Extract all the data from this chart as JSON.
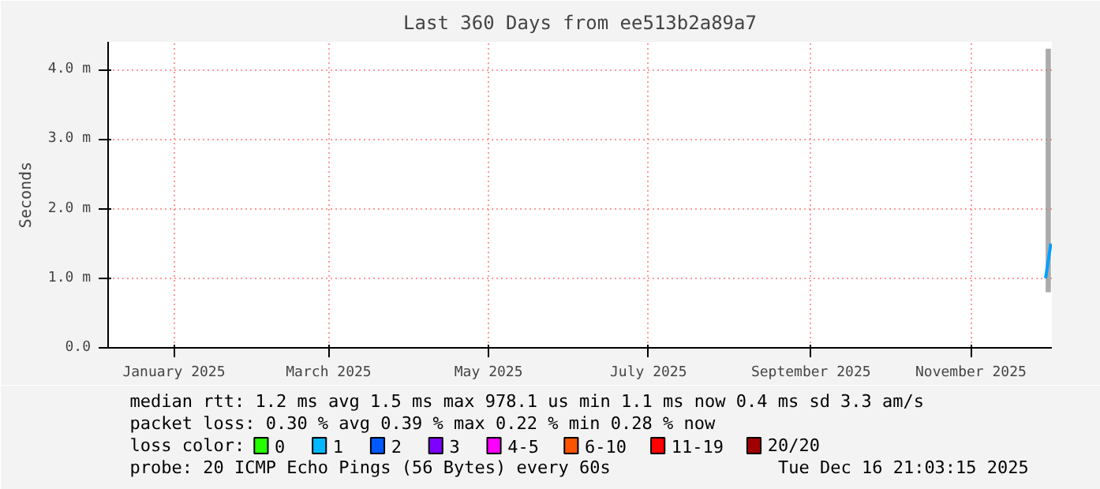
{
  "chart_data": {
    "type": "line",
    "title": "Last 360 Days from ee513b2a89a7",
    "ylabel": "Seconds",
    "xlim": [
      "2024-12-21T21:03",
      "2025-12-16T21:03"
    ],
    "xticks": [
      {
        "value": "2025-01-16",
        "label": "January 2025"
      },
      {
        "value": "2025-03-16",
        "label": "March 2025"
      },
      {
        "value": "2025-05-16",
        "label": "May 2025"
      },
      {
        "value": "2025-07-16",
        "label": "July 2025"
      },
      {
        "value": "2025-09-16",
        "label": "September 2025"
      },
      {
        "value": "2025-11-16",
        "label": "November 2025"
      }
    ],
    "ylim": [
      0,
      4.4
    ],
    "yticks": [
      {
        "value": 0,
        "label": "0.0"
      },
      {
        "value": 1,
        "label": "1.0 m"
      },
      {
        "value": 2,
        "label": "2.0 m"
      },
      {
        "value": 3,
        "label": "3.0 m"
      },
      {
        "value": 4,
        "label": "4.0 m"
      }
    ],
    "grid": true,
    "legend": "bottom",
    "legend_title": "loss color:",
    "series": [
      {
        "color": "#00a0ff",
        "x": [
          "2025-12-14T12:00",
          "2025-12-16T12:00"
        ],
        "values": [
          1.0,
          1.5
        ],
        "lower": [
          0.8,
          0.8
        ],
        "upper": [
          4.3,
          4.3
        ]
      },
      {
        "name": "0",
        "color": "#26ff00"
      },
      {
        "name": "1",
        "color": "#00b8ff"
      },
      {
        "name": "2",
        "color": "#0059ff"
      },
      {
        "name": "3",
        "color": "#7e00ff"
      },
      {
        "name": "4-5",
        "color": "#ff00ff"
      },
      {
        "name": "6-10",
        "color": "#ff5500"
      },
      {
        "name": "11-19",
        "color": "#ff0000"
      },
      {
        "name": "20/20",
        "color": "#a10000"
      }
    ],
    "annotations": [
      "median rtt:  1.2 ms avg  1.5 ms max  978.1 us min  1.1 ms now  0.4 ms sd  3.3   am/s",
      "packet loss: 0.30 % avg  0.39 % max  0.22 % min  0.28 % now",
      "probe:       20 ICMP Echo Pings (56 Bytes) every 60s",
      "Tue Dec 16 21:03:15 2025"
    ]
  }
}
